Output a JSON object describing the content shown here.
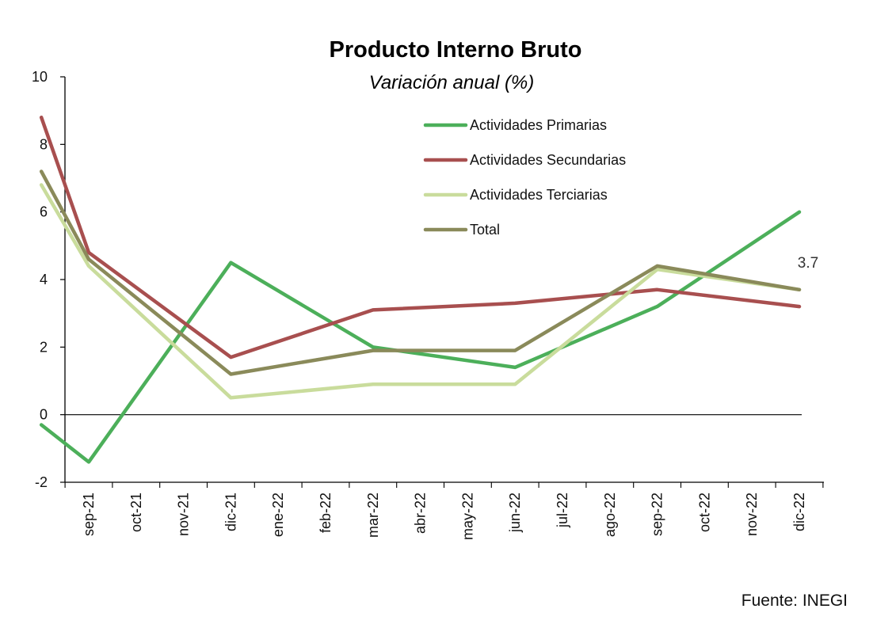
{
  "chart_data": {
    "type": "line",
    "title": "Producto Interno Bruto",
    "subtitle": "Variación anual (%)",
    "source": "Fuente: INEGI",
    "categories": [
      "sep-21",
      "oct-21",
      "nov-21",
      "dic-21",
      "ene-22",
      "feb-22",
      "mar-22",
      "abr-22",
      "may-22",
      "jun-22",
      "jul-22",
      "ago-22",
      "sep-22",
      "oct-22",
      "nov-22",
      "dic-22"
    ],
    "ylim": [
      -2,
      10
    ],
    "yticks": [
      "-2",
      "0",
      "2",
      "4",
      "6",
      "8",
      "10"
    ],
    "grid": false,
    "legend_position": "top-right",
    "series": [
      {
        "name": "Actividades Primarias",
        "color": "#4caf5a",
        "points": [
          {
            "x": "ago-21",
            "y": -0.3
          },
          {
            "x": "sep-21",
            "y": -1.4
          },
          {
            "x": "dic-21",
            "y": 4.5
          },
          {
            "x": "mar-22",
            "y": 2.0
          },
          {
            "x": "jun-22",
            "y": 1.4
          },
          {
            "x": "sep-22",
            "y": 3.2
          },
          {
            "x": "dic-22",
            "y": 6.0
          }
        ]
      },
      {
        "name": "Actividades Secundarias",
        "color": "#a84f4f",
        "points": [
          {
            "x": "ago-21",
            "y": 8.8
          },
          {
            "x": "sep-21",
            "y": 4.8
          },
          {
            "x": "dic-21",
            "y": 1.7
          },
          {
            "x": "mar-22",
            "y": 3.1
          },
          {
            "x": "jun-22",
            "y": 3.3
          },
          {
            "x": "sep-22",
            "y": 3.7
          },
          {
            "x": "dic-22",
            "y": 3.2
          }
        ]
      },
      {
        "name": "Actividades Terciarias",
        "color": "#c9dc9c",
        "points": [
          {
            "x": "ago-21",
            "y": 6.8
          },
          {
            "x": "sep-21",
            "y": 4.4
          },
          {
            "x": "dic-21",
            "y": 0.5
          },
          {
            "x": "mar-22",
            "y": 0.9
          },
          {
            "x": "jun-22",
            "y": 0.9
          },
          {
            "x": "sep-22",
            "y": 4.3
          },
          {
            "x": "dic-22",
            "y": 3.7
          }
        ]
      },
      {
        "name": "Total",
        "color": "#8a8a5a",
        "points": [
          {
            "x": "ago-21",
            "y": 7.2
          },
          {
            "x": "sep-21",
            "y": 4.6
          },
          {
            "x": "dic-21",
            "y": 1.2
          },
          {
            "x": "mar-22",
            "y": 1.9
          },
          {
            "x": "jun-22",
            "y": 1.9
          },
          {
            "x": "sep-22",
            "y": 4.4
          },
          {
            "x": "dic-22",
            "y": 3.7
          }
        ]
      }
    ],
    "annotations": [
      {
        "text": "3.7",
        "series": "Total",
        "x": "dic-22",
        "y": 3.7
      }
    ]
  }
}
